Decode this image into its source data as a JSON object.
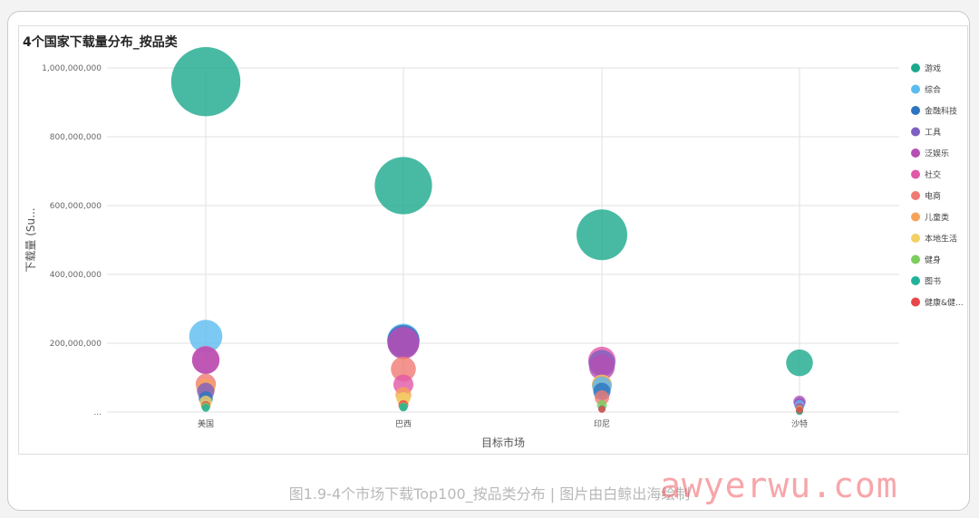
{
  "chart_data": {
    "type": "scatter",
    "title": "4个国家下载量分布_按品类",
    "xlabel": "目标市场",
    "ylabel": "下载量 (Su...",
    "categories": [
      "美国",
      "巴西",
      "印尼",
      "沙特"
    ],
    "yticks": [
      "...",
      "200,000,000",
      "400,000,000",
      "600,000,000",
      "800,000,000",
      "1,000,000,000"
    ],
    "ylim": [
      0,
      1000000000
    ],
    "grid": true,
    "legend_position": "right",
    "series": [
      {
        "name": "游戏",
        "color": "#1aa98c",
        "values": [
          960000000,
          658000000,
          515000000,
          143000000
        ]
      },
      {
        "name": "综合",
        "color": "#5bbcf0",
        "values": [
          220000000,
          210000000,
          75000000,
          20000000
        ]
      },
      {
        "name": "金融科技",
        "color": "#2c74c0",
        "values": [
          40000000,
          207000000,
          60000000,
          12000000
        ]
      },
      {
        "name": "工具",
        "color": "#7d5fc0",
        "values": [
          60000000,
          203000000,
          142000000,
          25000000
        ]
      },
      {
        "name": "泛娱乐",
        "color": "#b44fb4",
        "values": [
          150000000,
          200000000,
          130000000,
          30000000
        ]
      },
      {
        "name": "社交",
        "color": "#e258a8",
        "values": [
          152000000,
          80000000,
          150000000,
          15000000
        ]
      },
      {
        "name": "电商",
        "color": "#f07a72",
        "values": [
          82000000,
          125000000,
          42000000,
          8000000
        ]
      },
      {
        "name": "儿童类",
        "color": "#f6a35a",
        "values": [
          70000000,
          50000000,
          78000000,
          10000000
        ]
      },
      {
        "name": "本地生活",
        "color": "#f2d063",
        "values": [
          30000000,
          38000000,
          80000000,
          5000000
        ]
      },
      {
        "name": "健身",
        "color": "#7ccd5e",
        "values": [
          15000000,
          15000000,
          20000000,
          3000000
        ]
      },
      {
        "name": "图书",
        "color": "#20b39a",
        "values": [
          12000000,
          14000000,
          10000000,
          2000000
        ]
      },
      {
        "name": "健康&健...",
        "color": "#e8474a",
        "values": [
          18000000,
          20000000,
          8000000,
          6000000
        ]
      }
    ]
  },
  "caption": "图1.9-4个市场下载Top100_按品类分布 | 图片由白鲸出海绘制",
  "watermark": "awyerwu.com"
}
